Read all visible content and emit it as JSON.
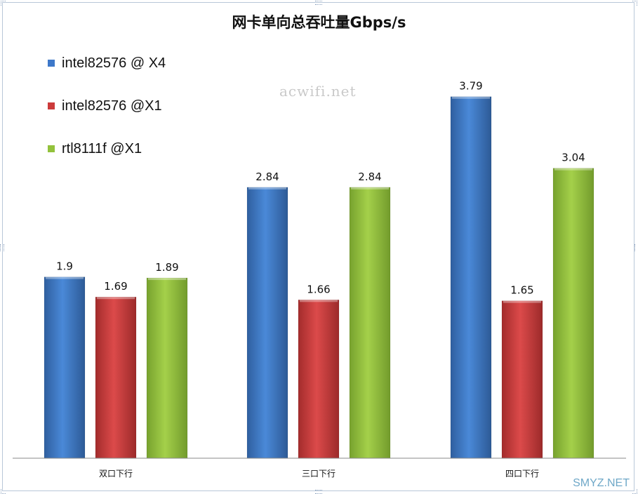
{
  "chart_data": {
    "type": "bar",
    "title": "网卡单向总吞吐量Gbps/s",
    "categories": [
      "双口下行",
      "三口下行",
      "四口下行"
    ],
    "series": [
      {
        "name": "intel82576 @ X4",
        "values": [
          1.9,
          2.84,
          3.79
        ],
        "color": "#3d78c9"
      },
      {
        "name": "intel82576 @X1",
        "values": [
          1.69,
          1.66,
          1.65
        ],
        "color": "#cc3b3b"
      },
      {
        "name": "rtl8111f @X1",
        "values": [
          1.89,
          2.84,
          3.04
        ],
        "color": "#93c23c"
      }
    ],
    "ylim": [
      0,
      4.2
    ],
    "grid": false,
    "legend_position": "top-left",
    "xlabel": "",
    "ylabel": ""
  },
  "watermark": "acwifi.net",
  "corner_mark": "SMYZ.NET"
}
